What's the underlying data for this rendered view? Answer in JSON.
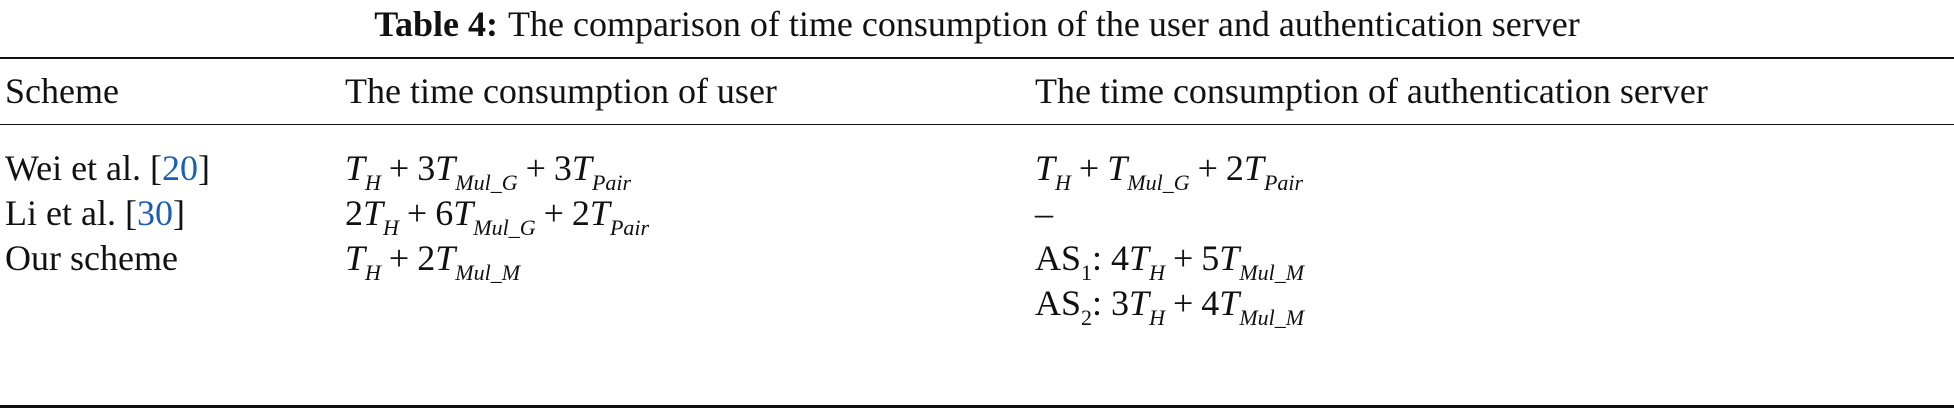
{
  "caption": {
    "label": "Table 4:",
    "text": "The comparison of time consumption of the user and authentication server"
  },
  "headers": [
    "Scheme",
    "The time consumption of user",
    "The time consumption of authentication server"
  ],
  "rows": [
    {
      "scheme": "Wei et al. [",
      "ref": "20",
      "scheme_end": "]",
      "user": [
        {
          "c": "",
          "v": "T",
          "s": "H"
        },
        {
          "op": "+"
        },
        {
          "c": "3",
          "v": "T",
          "s": "Mul_G"
        },
        {
          "op": "+"
        },
        {
          "c": "3",
          "v": "T",
          "s": "Pair"
        }
      ],
      "server": [
        {
          "c": "",
          "v": "T",
          "s": "H"
        },
        {
          "op": "+"
        },
        {
          "c": "",
          "v": "T",
          "s": "Mul_G"
        },
        {
          "op": "+"
        },
        {
          "c": "2",
          "v": "T",
          "s": "Pair"
        }
      ]
    },
    {
      "scheme": "Li et al. [",
      "ref": "30",
      "scheme_end": "]",
      "user": [
        {
          "c": "2",
          "v": "T",
          "s": "H"
        },
        {
          "op": "+"
        },
        {
          "c": "6",
          "v": "T",
          "s": "Mul_G"
        },
        {
          "op": "+"
        },
        {
          "c": "2",
          "v": "T",
          "s": "Pair"
        }
      ],
      "server": [
        {
          "c": "–"
        }
      ]
    },
    {
      "scheme": "Our scheme",
      "ref": "",
      "scheme_end": "",
      "user": [
        {
          "c": "",
          "v": "T",
          "s": "H"
        },
        {
          "op": "+"
        },
        {
          "c": "2",
          "v": "T",
          "s": "Mul_M"
        }
      ],
      "server": [
        {
          "c": "AS",
          "us": "1"
        },
        {
          "c": ": 4",
          "v": "T",
          "s": "H"
        },
        {
          "op": "+"
        },
        {
          "c": "5",
          "v": "T",
          "s": "Mul_M"
        }
      ]
    },
    {
      "scheme": "",
      "ref": "",
      "scheme_end": "",
      "user": [],
      "server": [
        {
          "c": "AS",
          "us": "2"
        },
        {
          "c": ": 3",
          "v": "T",
          "s": "H"
        },
        {
          "op": "+"
        },
        {
          "c": "4",
          "v": "T",
          "s": "Mul_M"
        }
      ]
    }
  ],
  "colors": {
    "reference_link": "#1a5fb4",
    "text": "#111111"
  }
}
